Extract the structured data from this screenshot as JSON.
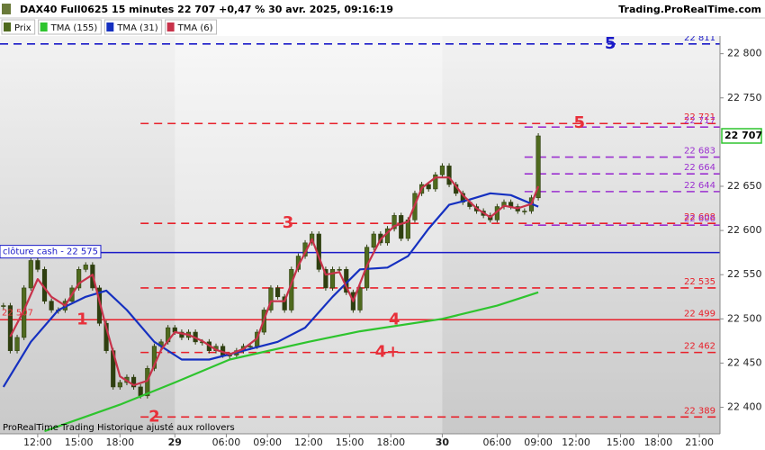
{
  "header": {
    "title": "DAX40 Full0625 15 minutes 22 707 +0,47 % 30 avr. 2025, 09:16:19",
    "site": "Trading.ProRealTime.com"
  },
  "footer": "ProRealTime Trading  Historique ajusté aux rollovers",
  "chart_data": {
    "type": "candlestick",
    "xlim": [
      0,
      210
    ],
    "ylim": [
      22370,
      22820
    ],
    "xticks": [
      {
        "value": 11,
        "label": "12:00"
      },
      {
        "value": 23,
        "label": "15:00"
      },
      {
        "value": 35,
        "label": "18:00"
      },
      {
        "value": 51,
        "label": "29"
      },
      {
        "value": 66,
        "label": "06:00"
      },
      {
        "value": 78,
        "label": "09:00"
      },
      {
        "value": 90,
        "label": "12:00"
      },
      {
        "value": 102,
        "label": "15:00"
      },
      {
        "value": 114,
        "label": "18:00"
      },
      {
        "value": 129,
        "label": "30"
      },
      {
        "value": 145,
        "label": "06:00"
      },
      {
        "value": 157,
        "label": "09:00"
      },
      {
        "value": 168,
        "label": "12:00"
      },
      {
        "value": 181,
        "label": "15:00"
      },
      {
        "value": 192,
        "label": "18:00"
      },
      {
        "value": 204,
        "label": "21:00"
      }
    ],
    "yticks": [
      {
        "value": 22400,
        "label": "22 400"
      },
      {
        "value": 22450,
        "label": "22 450"
      },
      {
        "value": 22500,
        "label": "22 500"
      },
      {
        "value": 22550,
        "label": "22 550"
      },
      {
        "value": 22600,
        "label": "22 600"
      },
      {
        "value": 22650,
        "label": "22 650"
      },
      {
        "value": 22750,
        "label": "22 750"
      },
      {
        "value": 22800,
        "label": "22 800"
      }
    ],
    "series": [
      {
        "name": "Prix",
        "color": "#4f6a1e",
        "x": [
          1,
          3,
          5,
          7,
          9,
          11,
          13,
          15,
          17,
          19,
          21,
          23,
          25,
          27,
          29,
          31,
          33,
          35,
          37,
          39,
          41,
          43,
          45,
          47,
          49,
          51,
          53,
          55,
          57,
          59,
          61,
          63,
          65,
          67,
          69,
          71,
          73,
          75,
          77,
          79,
          81,
          83,
          85,
          87,
          89,
          91,
          93,
          95,
          97,
          99,
          101,
          103,
          105,
          107,
          109,
          111,
          113,
          115,
          117,
          119,
          121,
          123,
          125,
          127,
          129,
          131,
          133,
          135,
          137,
          139,
          141,
          143,
          145,
          147,
          149,
          151,
          153,
          155,
          157
        ],
        "values": [
          22515,
          22464,
          22479,
          22535,
          22566,
          22556,
          22520,
          22510,
          22510,
          22520,
          22535,
          22556,
          22561,
          22535,
          22495,
          22464,
          22423,
          22428,
          22434,
          22423,
          22413,
          22444,
          22469,
          22474,
          22490,
          22485,
          22479,
          22485,
          22474,
          22474,
          22464,
          22469,
          22459,
          22459,
          22464,
          22469,
          22469,
          22485,
          22510,
          22535,
          22525,
          22510,
          22556,
          22571,
          22586,
          22596,
          22556,
          22535,
          22556,
          22556,
          22530,
          22510,
          22535,
          22581,
          22596,
          22586,
          22602,
          22617,
          22591,
          22612,
          22642,
          22652,
          22647,
          22663,
          22673,
          22652,
          22642,
          22632,
          22627,
          22622,
          22617,
          22612,
          22627,
          22632,
          22627,
          22622,
          22622,
          22637,
          22707
        ]
      },
      {
        "name": "TMA (155)",
        "color": "#2ec42e",
        "x": [
          13,
          35,
          51,
          67,
          90,
          105,
          129,
          145,
          157
        ],
        "values": [
          22373,
          22403,
          22428,
          22454,
          22474,
          22486,
          22500,
          22515,
          22530
        ]
      },
      {
        "name": "TMA (31)",
        "color": "#1530c0",
        "x": [
          1,
          9,
          17,
          25,
          31,
          37,
          45,
          53,
          61,
          71,
          81,
          89,
          97,
          105,
          113,
          119,
          125,
          131,
          137,
          143,
          149,
          157
        ],
        "values": [
          22423,
          22474,
          22510,
          22525,
          22532,
          22510,
          22474,
          22454,
          22454,
          22464,
          22474,
          22490,
          22525,
          22556,
          22558,
          22571,
          22602,
          22629,
          22635,
          22642,
          22640,
          22627
        ]
      },
      {
        "name": "TMA (6)",
        "color": "#c8324a",
        "x": [
          3,
          7,
          11,
          15,
          19,
          23,
          27,
          31,
          35,
          39,
          43,
          47,
          51,
          55,
          59,
          63,
          67,
          71,
          75,
          79,
          83,
          87,
          91,
          95,
          99,
          103,
          107,
          111,
          115,
          119,
          123,
          127,
          131,
          135,
          139,
          143,
          147,
          151,
          155,
          157
        ],
        "values": [
          22480,
          22510,
          22545,
          22525,
          22515,
          22540,
          22550,
          22490,
          22435,
          22425,
          22430,
          22465,
          22485,
          22482,
          22475,
          22465,
          22460,
          22466,
          22478,
          22520,
          22520,
          22560,
          22590,
          22550,
          22553,
          22520,
          22560,
          22590,
          22605,
          22610,
          22648,
          22660,
          22660,
          22640,
          22625,
          22615,
          22628,
          22625,
          22630,
          22650
        ]
      }
    ],
    "last_price": {
      "value": 22707,
      "label": "22 707"
    },
    "levels": [
      {
        "value": 22811,
        "label": "22 811",
        "color": "#1a1ac8",
        "style": "dashed",
        "x_start": 0
      },
      {
        "value": 22721,
        "label": "22 721",
        "color": "#e8202a",
        "style": "dashed",
        "x_start": 41
      },
      {
        "value": 22717,
        "label": "22 717",
        "color": "#9b30d0",
        "style": "dashed",
        "x_start": 153
      },
      {
        "value": 22683,
        "label": "22 683",
        "color": "#9b30d0",
        "style": "dashed",
        "x_start": 153
      },
      {
        "value": 22664,
        "label": "22 664",
        "color": "#9b30d0",
        "style": "dashed",
        "x_start": 153
      },
      {
        "value": 22644,
        "label": "22 644",
        "color": "#9b30d0",
        "style": "dashed",
        "x_start": 153
      },
      {
        "value": 22608,
        "label": "22 608",
        "color": "#e8202a",
        "style": "dashed",
        "x_start": 41
      },
      {
        "value": 22606,
        "label": "22 606",
        "color": "#9b30d0",
        "style": "dashed",
        "x_start": 153
      },
      {
        "value": 22575,
        "label": "clôture cash -  22 575",
        "color": "#1a1ac8",
        "style": "solid",
        "x_start": 0,
        "label_side": "left"
      },
      {
        "value": 22535,
        "label": "22 535",
        "color": "#e8202a",
        "style": "dashed",
        "x_start": 41
      },
      {
        "value": 22499,
        "label": "22 499",
        "color": "#e8202a",
        "style": "solid",
        "x_start": 0
      },
      {
        "value": 22462,
        "label": "22 462",
        "color": "#e8202a",
        "style": "dashed",
        "x_start": 41
      },
      {
        "value": 22389,
        "label": "22 389",
        "color": "#e8202a",
        "style": "dashed",
        "x_start": 41
      }
    ],
    "annotations": [
      {
        "text": "5",
        "x": 178,
        "y": 22811,
        "color": "#1a1ac8"
      },
      {
        "text": "5",
        "x": 169,
        "y": 22721,
        "color": "#e8303a"
      },
      {
        "text": "3",
        "x": 84,
        "y": 22608,
        "color": "#e8303a"
      },
      {
        "text": "1",
        "x": 24,
        "y": 22499,
        "color": "#e8303a"
      },
      {
        "text": "4",
        "x": 115,
        "y": 22499,
        "color": "#e8303a"
      },
      {
        "text": "4+",
        "x": 113,
        "y": 22462,
        "color": "#e8303a"
      },
      {
        "text": "2",
        "x": 45,
        "y": 22389,
        "color": "#e8303a"
      },
      {
        "text": "22 507",
        "x": 0,
        "y": 22507,
        "color": "#e8303a",
        "small": true
      }
    ]
  }
}
